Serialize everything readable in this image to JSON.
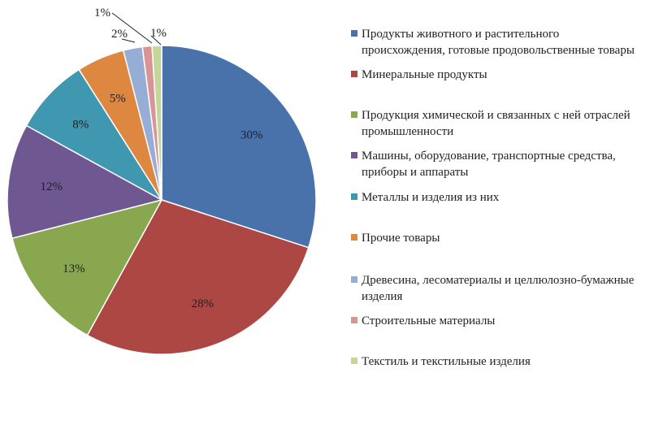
{
  "chart_data": {
    "type": "pie",
    "title": "",
    "legend_position": "right",
    "categories": [
      "Продукты животного и растительного происхождения, готовые продовольственные товары",
      "Минеральные продукты",
      "Продукция химической и связанных с ней отраслей промышленности",
      "Машины, оборудование, транспортные средства, приборы и аппараты",
      "Металлы и изделия из них",
      "Прочие товары",
      "Древесина, лесоматериалы и целлюлозно-бумажные изделия",
      "Строительные материалы",
      "Текстиль и текстильные изделия"
    ],
    "values": [
      30,
      28,
      13,
      12,
      8,
      5,
      2,
      1,
      1
    ],
    "data_labels": [
      "30%",
      "28%",
      "13%",
      "12%",
      "8%",
      "5%",
      "2%",
      "1%",
      "1%"
    ],
    "colors": [
      "#4a72aa",
      "#ad4744",
      "#89a74e",
      "#6f5792",
      "#3f97b0",
      "#dd8741",
      "#96add5",
      "#d99594",
      "#c4d79b"
    ]
  }
}
